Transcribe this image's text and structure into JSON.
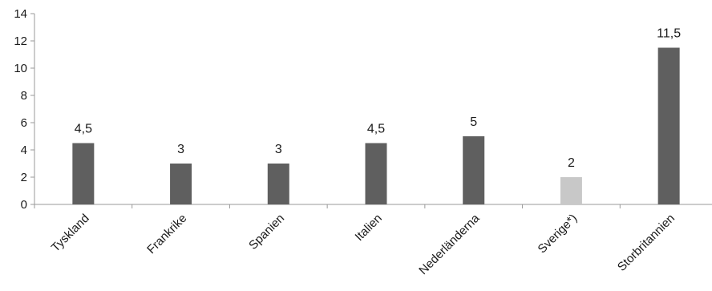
{
  "chart_data": {
    "type": "bar",
    "categories": [
      "Tyskland",
      "Frankrike",
      "Spanien",
      "Italien",
      "Nederländerna",
      "Sverige*)",
      "Storbritannien"
    ],
    "values": [
      4.5,
      3,
      3,
      4.5,
      5,
      2,
      11.5
    ],
    "data_labels": [
      "4,5",
      "3",
      "3",
      "4,5",
      "5",
      "2",
      "11,5"
    ],
    "yticks": [
      0,
      2,
      4,
      6,
      8,
      10,
      12,
      14
    ],
    "ylim": [
      0,
      14
    ],
    "grid": false,
    "legend": "none",
    "title": "",
    "xlabel": "",
    "ylabel": "",
    "colors": {
      "bar": "#5f5f5f",
      "highlight": "#c8c8c8",
      "highlight_index": 5
    }
  }
}
